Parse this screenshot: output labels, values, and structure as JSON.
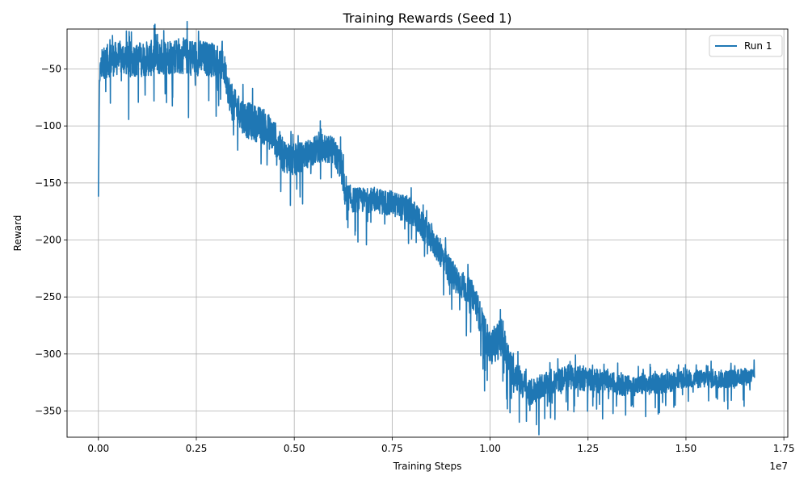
{
  "chart_data": {
    "type": "line",
    "title": "Training Rewards (Seed 1)",
    "xlabel": "Training Steps",
    "ylabel": "Reward",
    "x_multiplier_label": "1e7",
    "xlim": [
      -800000,
      17600000
    ],
    "ylim": [
      -373,
      -15
    ],
    "x_ticks": [
      0,
      2500000,
      5000000,
      7500000,
      10000000,
      12500000,
      15000000,
      17500000
    ],
    "x_tick_labels": [
      "0.00",
      "0.25",
      "0.50",
      "0.75",
      "1.00",
      "1.25",
      "1.50",
      "1.75"
    ],
    "y_ticks": [
      -350,
      -300,
      -250,
      -200,
      -150,
      -100,
      -50
    ],
    "y_tick_labels": [
      "−350",
      "−300",
      "−250",
      "−200",
      "−150",
      "−100",
      "−50"
    ],
    "grid": true,
    "legend_position": "top-right",
    "series": [
      {
        "name": "Run 1",
        "color": "#1f77b4",
        "trend_x": [
          0,
          30000,
          100000,
          300000,
          600000,
          1000000,
          1500000,
          2000000,
          2500000,
          3000000,
          3200000,
          3400000,
          3800000,
          4200000,
          4500000,
          4700000,
          5000000,
          5300000,
          5600000,
          6000000,
          6200000,
          6300000,
          6500000,
          7000000,
          7500000,
          8000000,
          8300000,
          8600000,
          8800000,
          9000000,
          9300000,
          9600000,
          9800000,
          10000000,
          10300000,
          10500000,
          10800000,
          11000000,
          11300000,
          11600000,
          12000000,
          12500000,
          13000000,
          13500000,
          14000000,
          14500000,
          15000000,
          15500000,
          16000000,
          16500000,
          16750000
        ],
        "trend_y": [
          -162,
          -55,
          -45,
          -42,
          -40,
          -42,
          -40,
          -38,
          -40,
          -42,
          -48,
          -80,
          -95,
          -100,
          -110,
          -125,
          -130,
          -125,
          -120,
          -122,
          -135,
          -160,
          -165,
          -165,
          -168,
          -175,
          -190,
          -205,
          -215,
          -230,
          -240,
          -250,
          -275,
          -295,
          -285,
          -310,
          -325,
          -335,
          -328,
          -325,
          -320,
          -322,
          -325,
          -328,
          -327,
          -325,
          -322,
          -322,
          -322,
          -320,
          -320
        ],
        "spread": [
          0,
          20,
          28,
          30,
          30,
          30,
          32,
          32,
          32,
          30,
          28,
          30,
          32,
          32,
          30,
          30,
          28,
          25,
          25,
          25,
          28,
          25,
          22,
          22,
          22,
          25,
          25,
          22,
          25,
          28,
          25,
          25,
          30,
          30,
          35,
          28,
          25,
          24,
          22,
          20,
          22,
          22,
          20,
          18,
          18,
          18,
          16,
          16,
          16,
          15,
          15
        ]
      }
    ]
  }
}
